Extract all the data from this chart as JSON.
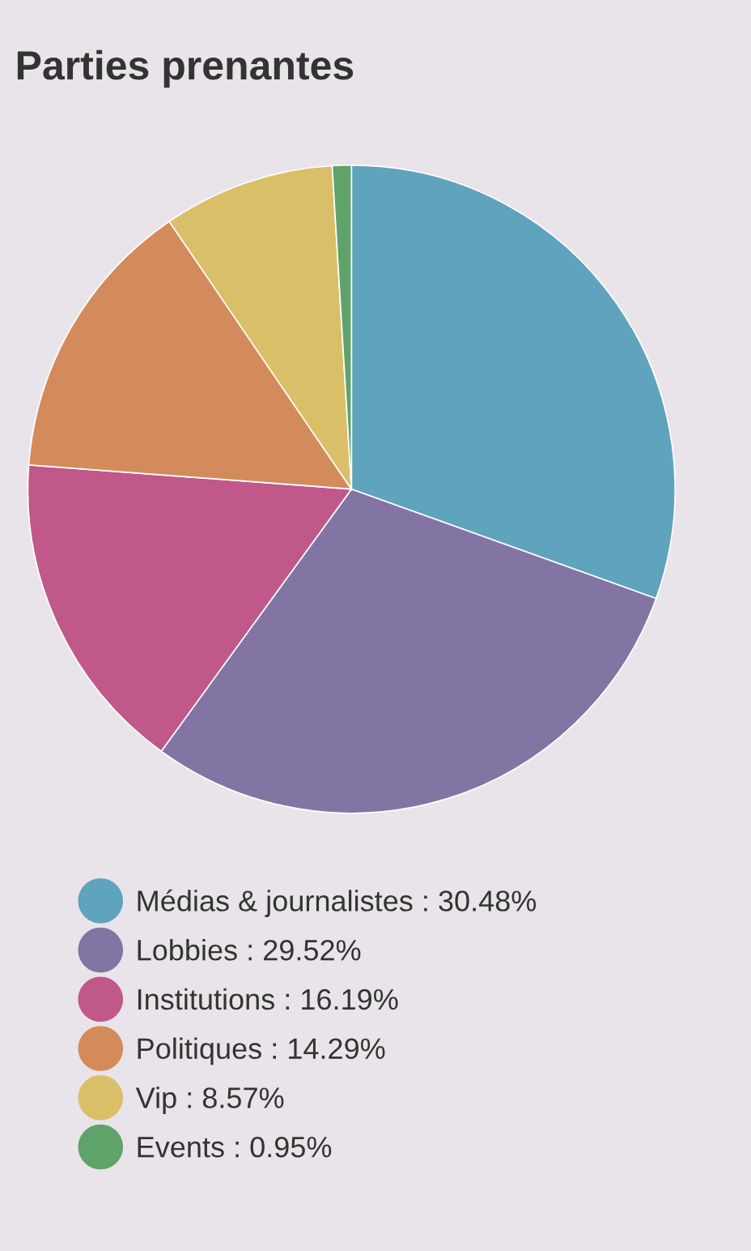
{
  "chart_data": {
    "type": "pie",
    "title": "Parties prenantes",
    "categories": [
      "Médias & journalistes : 30.48%",
      "Lobbies : 29.52%",
      "Institutions : 16.19%",
      "Politiques : 14.29%",
      "Vip : 8.57%",
      "Events : 0.95%"
    ],
    "values": [
      30.48,
      29.52,
      16.19,
      14.29,
      8.57,
      0.95
    ],
    "colors": [
      "#5fa3bd",
      "#8275a3",
      "#c0588a",
      "#d48b5c",
      "#dabf69",
      "#5fa36b"
    ],
    "legend": "bottom"
  }
}
